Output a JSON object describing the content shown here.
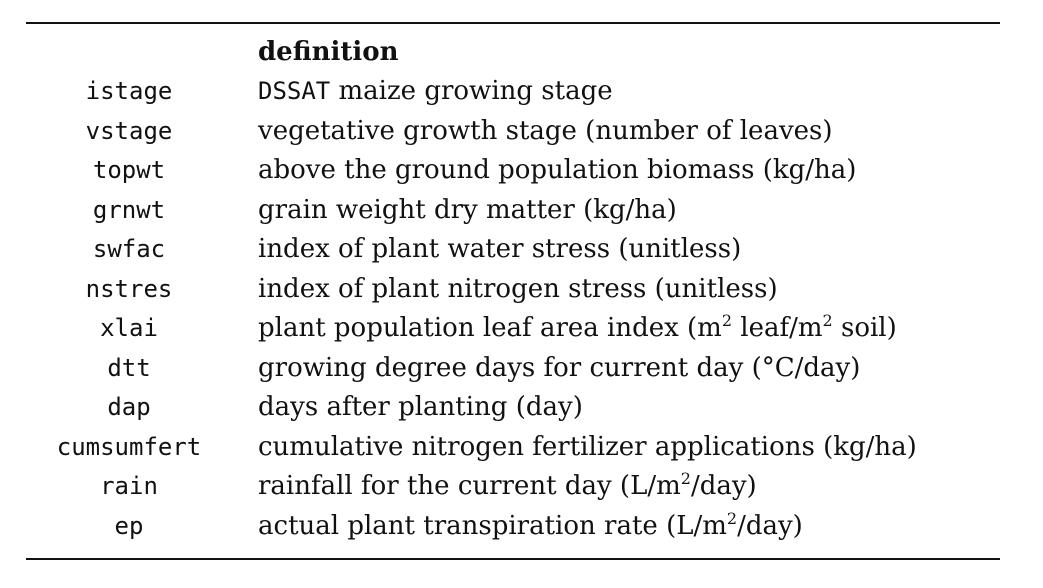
{
  "table": {
    "header": {
      "variable": "",
      "definition": "definition"
    },
    "rows": [
      {
        "name": "istage",
        "def_mono": "DSSAT",
        "def_text": " maize growing stage"
      },
      {
        "name": "vstage",
        "definition": "vegetative growth stage (number of leaves)"
      },
      {
        "name": "topwt",
        "definition": "above the ground population biomass (kg/ha)"
      },
      {
        "name": "grnwt",
        "definition": "grain weight dry matter (kg/ha)"
      },
      {
        "name": "swfac",
        "definition": "index of plant water stress (unitless)"
      },
      {
        "name": "nstres",
        "definition": "index of plant nitrogen stress (unitless)"
      },
      {
        "name": "xlai",
        "def_a": "plant population leaf area index (m",
        "def_sup1": "2",
        "def_b": " leaf/m",
        "def_sup2": "2",
        "def_c": " soil)"
      },
      {
        "name": "dtt",
        "definition": "growing degree days for current day (°C/day)"
      },
      {
        "name": "dap",
        "definition": "days after planting (day)"
      },
      {
        "name": "cumsumfert",
        "definition": "cumulative nitrogen fertilizer applications (kg/ha)"
      },
      {
        "name": "rain",
        "def_a": "rainfall for the current day (L/m",
        "def_sup": "2",
        "def_b": "/day)"
      },
      {
        "name": "ep",
        "def_a": "actual plant transpiration rate (L/m",
        "def_sup": "2",
        "def_b": "/day)"
      }
    ]
  }
}
